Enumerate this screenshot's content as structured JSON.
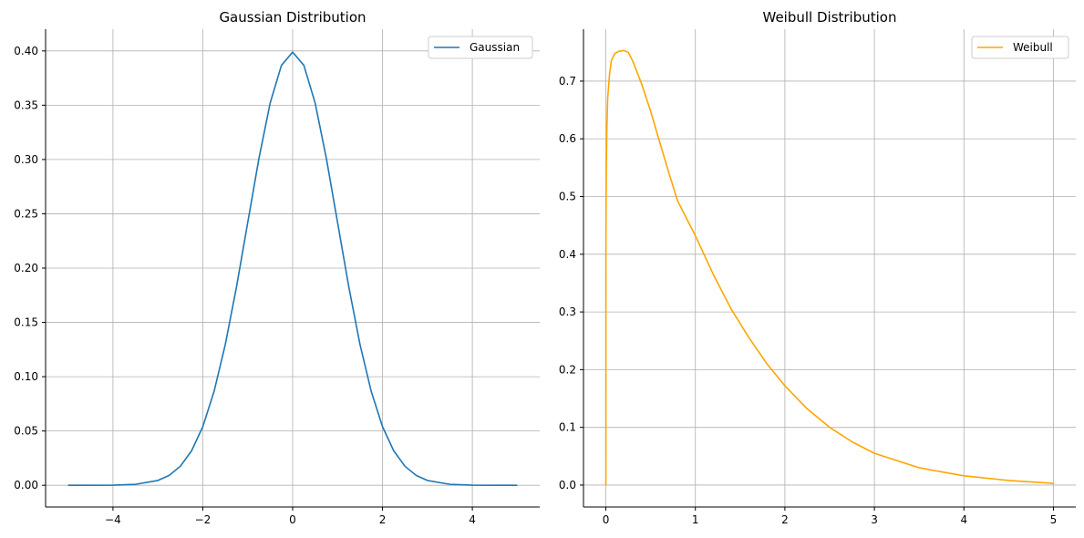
{
  "chart_data": [
    {
      "type": "line",
      "title": "Gaussian Distribution",
      "xlabel": "",
      "ylabel": "",
      "xlim": [
        -5.5,
        5.5
      ],
      "ylim": [
        -0.02,
        0.42
      ],
      "xticks": [
        -4,
        -2,
        0,
        2,
        4
      ],
      "xtick_labels": [
        "−4",
        "−2",
        "0",
        "2",
        "4"
      ],
      "yticks": [
        0.0,
        0.05,
        0.1,
        0.15,
        0.2,
        0.25,
        0.3,
        0.35,
        0.4
      ],
      "ytick_labels": [
        "0.00",
        "0.05",
        "0.10",
        "0.15",
        "0.20",
        "0.25",
        "0.30",
        "0.35",
        "0.40"
      ],
      "grid": true,
      "legend": "top-right",
      "series": [
        {
          "name": "Gaussian",
          "color": "#1f77b4",
          "x": [
            -5,
            -4.5,
            -4,
            -3.5,
            -3,
            -2.75,
            -2.5,
            -2.25,
            -2,
            -1.75,
            -1.5,
            -1.25,
            -1,
            -0.75,
            -0.5,
            -0.25,
            0,
            0.25,
            0.5,
            0.75,
            1,
            1.25,
            1.5,
            1.75,
            2,
            2.25,
            2.5,
            2.75,
            3,
            3.5,
            4,
            4.5,
            5
          ],
          "y": [
            1.5e-06,
            1.6e-05,
            0.000134,
            0.000873,
            0.00443,
            0.00909,
            0.01753,
            0.03174,
            0.05399,
            0.08628,
            0.12952,
            0.18265,
            0.24197,
            0.30114,
            0.35207,
            0.38667,
            0.39894,
            0.38667,
            0.35207,
            0.30114,
            0.24197,
            0.18265,
            0.12952,
            0.08628,
            0.05399,
            0.03174,
            0.01753,
            0.00909,
            0.00443,
            0.000873,
            0.000134,
            1.6e-05,
            1.5e-06
          ]
        }
      ]
    },
    {
      "type": "line",
      "title": "Weibull Distribution",
      "xlabel": "",
      "ylabel": "",
      "xlim": [
        -0.25,
        5.25
      ],
      "ylim": [
        -0.038,
        0.79
      ],
      "xticks": [
        0,
        1,
        2,
        3,
        4,
        5
      ],
      "xtick_labels": [
        "0",
        "1",
        "2",
        "3",
        "4",
        "5"
      ],
      "yticks": [
        0.0,
        0.1,
        0.2,
        0.3,
        0.4,
        0.5,
        0.6,
        0.7
      ],
      "ytick_labels": [
        "0.0",
        "0.1",
        "0.2",
        "0.3",
        "0.4",
        "0.5",
        "0.6",
        "0.7"
      ],
      "grid": true,
      "legend": "top-right",
      "series": [
        {
          "name": "Weibull",
          "color": "#ffa500",
          "x": [
            0,
            0.0005,
            0.002,
            0.005,
            0.01,
            0.02,
            0.04,
            0.06,
            0.1,
            0.15,
            0.2,
            0.25,
            0.3,
            0.4,
            0.5,
            0.6,
            0.7,
            0.8,
            1.0,
            1.2,
            1.4,
            1.6,
            1.8,
            2.0,
            2.25,
            2.5,
            2.75,
            3.0,
            3.5,
            4.0,
            4.5,
            5.0
          ],
          "y": [
            0.0,
            0.39,
            0.47,
            0.55,
            0.61,
            0.67,
            0.71,
            0.735,
            0.748,
            0.752,
            0.753,
            0.75,
            0.735,
            0.695,
            0.648,
            0.595,
            0.543,
            0.493,
            0.432,
            0.365,
            0.305,
            0.255,
            0.21,
            0.172,
            0.132,
            0.1,
            0.075,
            0.055,
            0.03,
            0.016,
            0.008,
            0.003
          ]
        }
      ]
    }
  ]
}
